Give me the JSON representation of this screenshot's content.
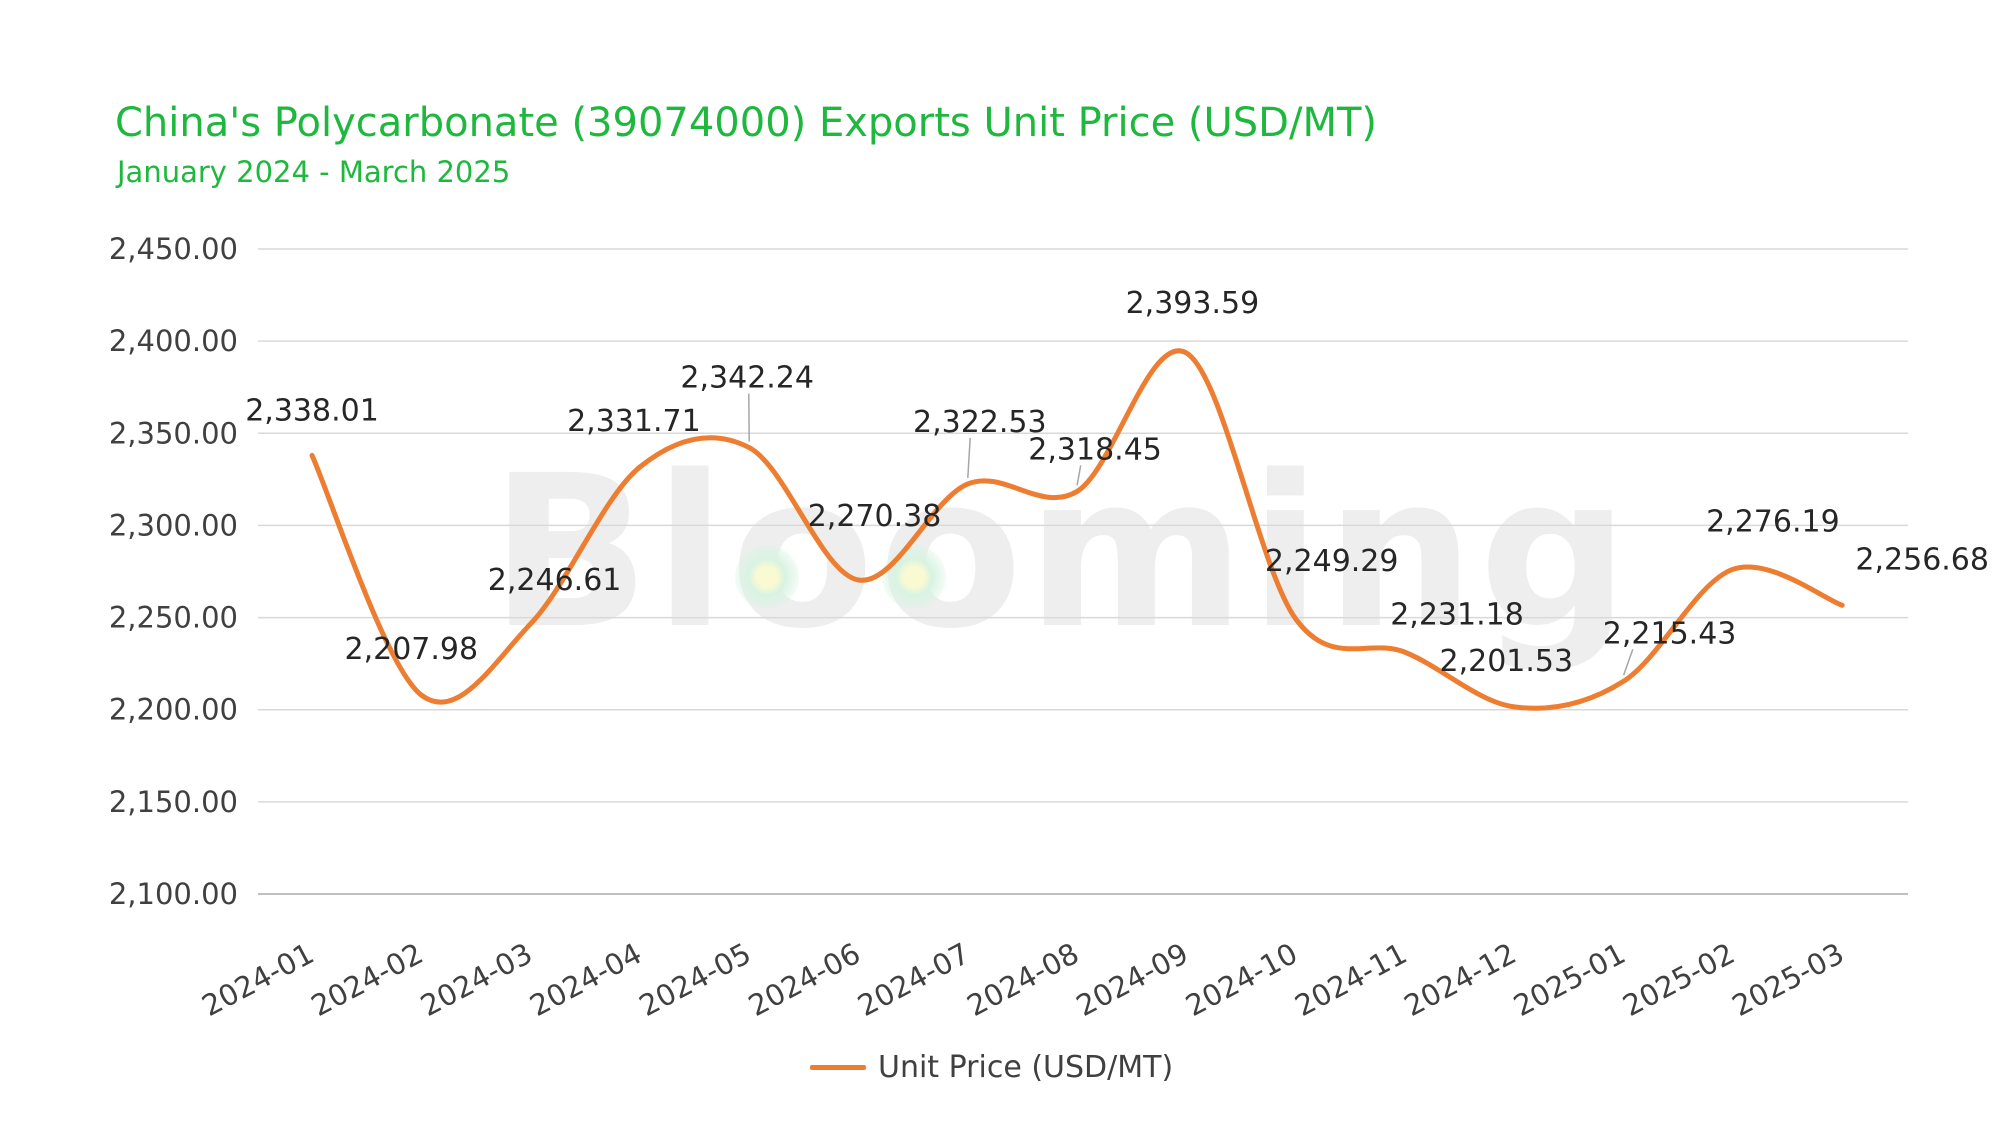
{
  "header": {
    "title": "China's Polycarbonate (39074000) Exports Unit Price (USD/MT)",
    "subtitle": "January 2024 - March 2025"
  },
  "watermark": {
    "text": "Blooming"
  },
  "legend": {
    "label": "Unit Price (USD/MT)"
  },
  "colors": {
    "line": "#ed7d31",
    "title": "#1fb83f",
    "grid": "#d9d9d9"
  },
  "chart_data": {
    "type": "line",
    "title": "China's Polycarbonate (39074000) Exports Unit Price (USD/MT)",
    "subtitle": "January 2024 - March 2025",
    "categories": [
      "2024-01",
      "2024-02",
      "2024-03",
      "2024-04",
      "2024-05",
      "2024-06",
      "2024-07",
      "2024-08",
      "2024-09",
      "2024-10",
      "2024-11",
      "2024-12",
      "2025-01",
      "2025-02",
      "2025-03"
    ],
    "series": [
      {
        "name": "Unit Price (USD/MT)",
        "values": [
          2338.01,
          2207.98,
          2246.61,
          2331.71,
          2342.24,
          2270.38,
          2322.53,
          2318.45,
          2393.59,
          2249.29,
          2231.18,
          2201.53,
          2215.43,
          2276.19,
          2256.68
        ],
        "labels": [
          "2,338.01",
          "2,207.98",
          "2,246.61",
          "2,331.71",
          "2,342.24",
          "2,270.38",
          "2,322.53",
          "2,318.45",
          "2,393.59",
          "2,249.29",
          "2,231.18",
          "2,201.53",
          "2,215.43",
          "2,276.19",
          "2,256.68"
        ]
      }
    ],
    "ylim": [
      2100,
      2450
    ],
    "yticks": [
      2100,
      2150,
      2200,
      2250,
      2300,
      2350,
      2400,
      2450
    ],
    "ytick_labels": [
      "2,100.00",
      "2,150.00",
      "2,200.00",
      "2,250.00",
      "2,300.00",
      "2,350.00",
      "2,400.00",
      "2,450.00"
    ],
    "xlabel": "",
    "ylabel": "",
    "grid": true,
    "smooth": true,
    "legend_position": "bottom"
  }
}
